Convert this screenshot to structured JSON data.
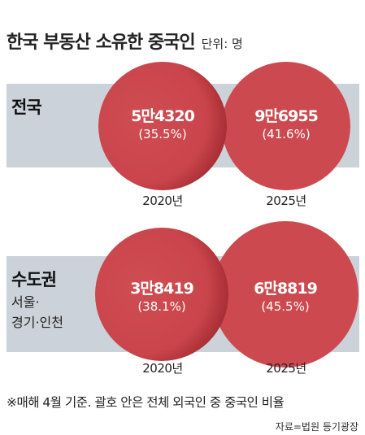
{
  "title": "한국 부동산 소유한 중국인",
  "unit": "단위: 명",
  "footnote": "※매해 4월 기준. 괄호 안은 전체 외국인 중 중국인 비율",
  "source": "자료=법원 등기광장",
  "colors": {
    "bubble": "#cc4a4f",
    "band": "#ccd2d9"
  },
  "chart_data": {
    "type": "bubble",
    "groups": [
      {
        "label": "전국",
        "points": [
          {
            "year": "2020년",
            "value": 54320,
            "value_label": "5만4320",
            "share": 35.5,
            "share_label": "(35.5%)"
          },
          {
            "year": "2025년",
            "value": 96955,
            "value_label": "9만6955",
            "share": 41.6,
            "share_label": "(41.6%)"
          }
        ]
      },
      {
        "label": "수도권",
        "sublabel_line1": "서울·",
        "sublabel_line2": "경기·인천",
        "points": [
          {
            "year": "2020년",
            "value": 38419,
            "value_label": "3만8419",
            "share": 38.1,
            "share_label": "(38.1%)"
          },
          {
            "year": "2025년",
            "value": 68819,
            "value_label": "6만8819",
            "share": 45.5,
            "share_label": "(45.5%)"
          }
        ]
      }
    ]
  }
}
